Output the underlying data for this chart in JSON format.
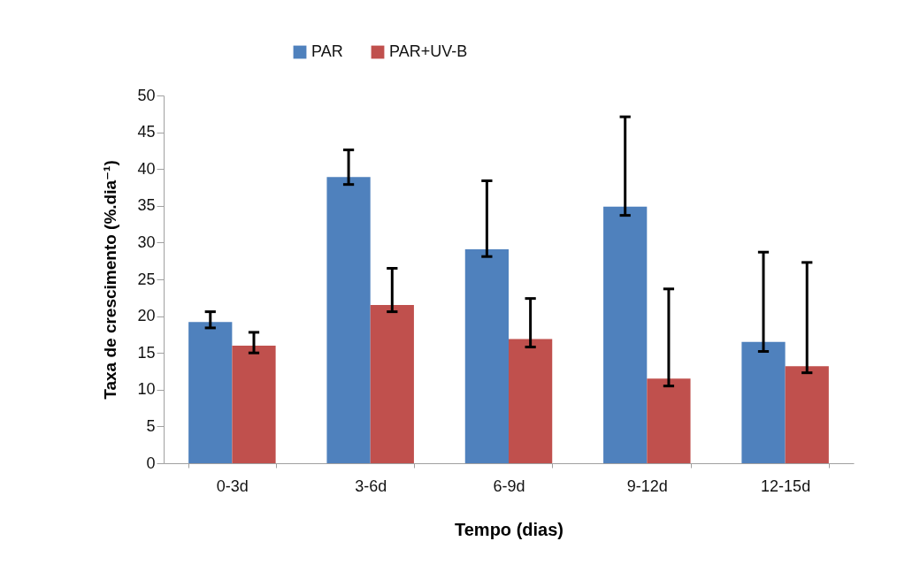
{
  "chart_data": {
    "type": "bar",
    "xlabel": "Tempo (dias)",
    "ylabel": "Taxa de crescimento (%.dia⁻¹)",
    "categories": [
      "0-3d",
      "3-6d",
      "6-9d",
      "9-12d",
      "12-15d"
    ],
    "series": [
      {
        "name": "PAR",
        "color": "#4f81bd",
        "values": [
          19.2,
          38.9,
          29.1,
          34.9,
          16.5
        ],
        "errors": [
          [
            18.4,
            20.6
          ],
          [
            37.9,
            42.6
          ],
          [
            28.1,
            38.4
          ],
          [
            33.7,
            47.1
          ],
          [
            15.2,
            28.7
          ]
        ]
      },
      {
        "name": "PAR+UV-B",
        "color": "#c0504d",
        "values": [
          16.0,
          21.5,
          16.9,
          11.5,
          13.2
        ],
        "errors": [
          [
            15.0,
            17.8
          ],
          [
            20.6,
            26.5
          ],
          [
            15.8,
            22.4
          ],
          [
            10.5,
            23.7
          ],
          [
            12.3,
            27.3
          ]
        ]
      }
    ],
    "ylim": [
      0,
      50
    ],
    "yticks": [
      0,
      5,
      10,
      15,
      20,
      25,
      30,
      35,
      40,
      45,
      50
    ],
    "grid": false,
    "legend": "top"
  }
}
